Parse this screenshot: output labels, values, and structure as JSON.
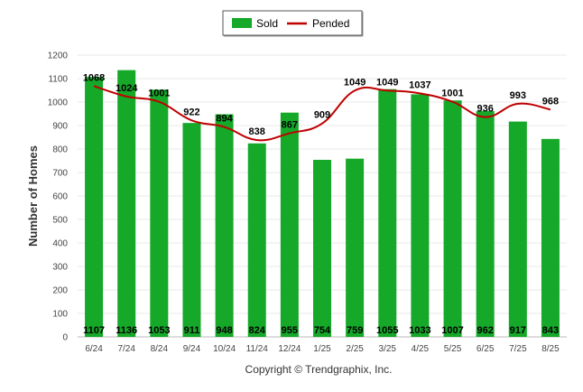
{
  "chart_data": {
    "type": "bar",
    "categories": [
      "6/24",
      "7/24",
      "8/24",
      "9/24",
      "10/24",
      "11/24",
      "12/24",
      "1/25",
      "2/25",
      "3/25",
      "4/25",
      "5/25",
      "6/25",
      "7/25",
      "8/25"
    ],
    "series": [
      {
        "name": "Sold",
        "type": "bar",
        "color": "#15a829",
        "values": [
          1107,
          1136,
          1053,
          911,
          948,
          824,
          955,
          754,
          759,
          1055,
          1033,
          1007,
          962,
          917,
          843
        ]
      },
      {
        "name": "Pended",
        "type": "line",
        "color": "#c00000",
        "values": [
          1068,
          1024,
          1001,
          922,
          894,
          838,
          867,
          909,
          1049,
          1049,
          1037,
          1001,
          936,
          993,
          968
        ]
      }
    ],
    "ylabel": "Number of Homes",
    "xlabel": "",
    "ylim": [
      0,
      1200
    ],
    "yticks": [
      0,
      100,
      200,
      300,
      400,
      500,
      600,
      700,
      800,
      900,
      1000,
      1100,
      1200
    ],
    "grid": true,
    "legend": "top-center"
  },
  "footer": {
    "copyright": "Copyright © Trendgraphix, Inc."
  }
}
